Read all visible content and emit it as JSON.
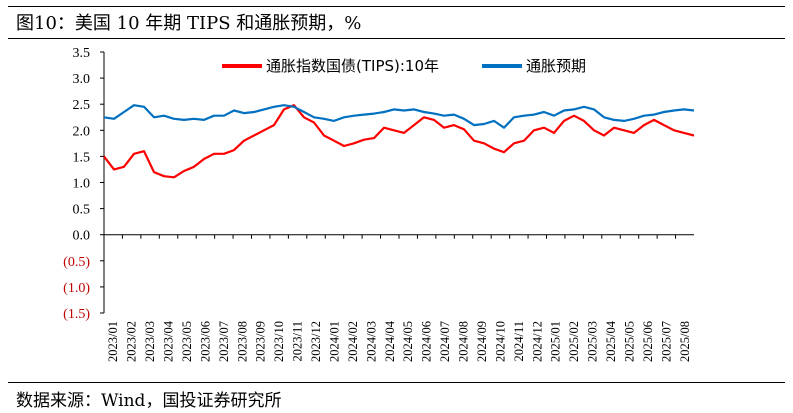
{
  "header": {
    "title": "图10：美国 10 年期 TIPS 和通胀预期，%"
  },
  "footer": {
    "source": "数据来源：Wind，国投证券研究所"
  },
  "colors": {
    "series1": "#ff0000",
    "series2": "#0070c0",
    "negative_label": "#c00000",
    "axis": "#000000"
  },
  "chart_data": {
    "type": "line",
    "title": "美国 10 年期 TIPS 和通胀预期，%",
    "ylim": [
      -1.5,
      3.5
    ],
    "yticks": [
      3.5,
      3.0,
      2.5,
      2.0,
      1.5,
      1.0,
      0.5,
      0.0,
      -0.5,
      -1.0,
      -1.5
    ],
    "ytick_labels": [
      "3.5",
      "3.0",
      "2.5",
      "2.0",
      "1.5",
      "1.0",
      "0.5",
      "0.0",
      "(0.5)",
      "(1.0)",
      "(1.5)"
    ],
    "x_labels": [
      "2023/01",
      "2023/02",
      "2023/03",
      "2023/04",
      "2023/05",
      "2023/06",
      "2023/07",
      "2023/08",
      "2023/09",
      "2023/10",
      "2023/11",
      "2023/12",
      "2024/01",
      "2024/02",
      "2024/03",
      "2024/04",
      "2024/05",
      "2024/06",
      "2024/07",
      "2024/08",
      "2024/09",
      "2024/10",
      "2024/11",
      "2024/12",
      "2025/01",
      "2025/02",
      "2025/03",
      "2025/04",
      "2025/05",
      "2025/06",
      "2025/07",
      "2025/08"
    ],
    "legend": {
      "position": "top"
    },
    "series": [
      {
        "name": "通胀指数国债(TIPS):10年",
        "color": "#ff0000",
        "values": [
          1.5,
          1.25,
          1.3,
          1.55,
          1.6,
          1.2,
          1.12,
          1.1,
          1.22,
          1.3,
          1.45,
          1.55,
          1.55,
          1.62,
          1.8,
          1.9,
          2.0,
          2.1,
          2.4,
          2.48,
          2.25,
          2.15,
          1.9,
          1.8,
          1.7,
          1.75,
          1.82,
          1.85,
          2.05,
          2.0,
          1.95,
          2.1,
          2.25,
          2.2,
          2.05,
          2.1,
          2.02,
          1.8,
          1.75,
          1.65,
          1.58,
          1.75,
          1.8,
          2.0,
          2.05,
          1.95,
          2.18,
          2.28,
          2.18,
          2.0,
          1.9,
          2.05,
          2.0,
          1.95,
          2.1,
          2.2,
          2.1,
          2.0,
          1.95,
          1.9
        ]
      },
      {
        "name": "通胀预期",
        "color": "#0070c0",
        "values": [
          2.25,
          2.22,
          2.35,
          2.48,
          2.45,
          2.25,
          2.28,
          2.22,
          2.2,
          2.22,
          2.2,
          2.28,
          2.28,
          2.38,
          2.33,
          2.35,
          2.4,
          2.45,
          2.48,
          2.45,
          2.35,
          2.25,
          2.22,
          2.18,
          2.25,
          2.28,
          2.3,
          2.32,
          2.35,
          2.4,
          2.38,
          2.4,
          2.35,
          2.32,
          2.28,
          2.3,
          2.22,
          2.1,
          2.12,
          2.18,
          2.05,
          2.25,
          2.28,
          2.3,
          2.35,
          2.28,
          2.38,
          2.4,
          2.45,
          2.4,
          2.25,
          2.2,
          2.18,
          2.22,
          2.28,
          2.3,
          2.35,
          2.38,
          2.4,
          2.38
        ]
      }
    ]
  }
}
